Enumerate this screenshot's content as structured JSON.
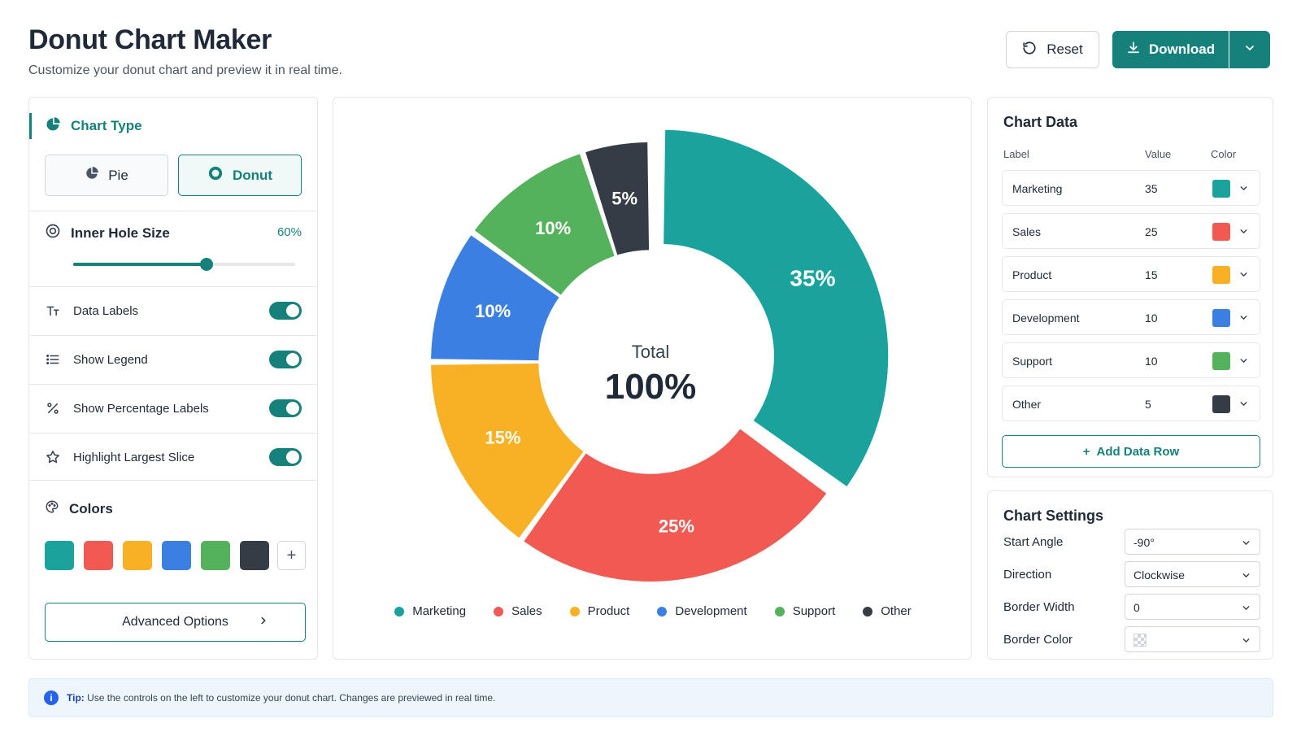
{
  "header": {
    "title": "Donut Chart Maker",
    "subtitle": "Customize your donut chart and preview it in real time.",
    "reset_label": "Reset",
    "download_label": "Download"
  },
  "left": {
    "chart_type_heading": "Chart Type",
    "type_pie": "Pie",
    "type_donut": "Donut",
    "hole_label": "Inner Hole Size",
    "hole_value": "60%",
    "hole_fraction": 0.6,
    "toggles": [
      {
        "label": "Data Labels",
        "icon": "text-size-icon",
        "on": true
      },
      {
        "label": "Show Legend",
        "icon": "list-icon",
        "on": true
      },
      {
        "label": "Show Percentage Labels",
        "icon": "percent-icon",
        "on": true
      },
      {
        "label": "Highlight Largest Slice",
        "icon": "star-icon",
        "on": true
      }
    ],
    "colors_heading": "Colors",
    "swatches": [
      "#1aa39d",
      "#f05a52",
      "#f8b125",
      "#3b7fe3",
      "#55b25c",
      "#363c45"
    ],
    "advanced_label": "Advanced Options"
  },
  "chart_data": {
    "type": "pie",
    "donut": true,
    "center_label": "Total",
    "center_value": "100%",
    "labels": [
      "Marketing",
      "Sales",
      "Product",
      "Development",
      "Support",
      "Other"
    ],
    "values": [
      35,
      25,
      15,
      10,
      10,
      5
    ],
    "data_labels": [
      "35%",
      "25%",
      "15%",
      "10%",
      "10%",
      "5%"
    ],
    "colors": [
      "#1aa39d",
      "#f05a52",
      "#f8b125",
      "#3b7fe3",
      "#55b25c",
      "#363c45"
    ],
    "start_angle": -90,
    "direction": "clockwise",
    "highlighted": "Marketing",
    "legend": "bottom"
  },
  "data_panel": {
    "title": "Chart Data",
    "col_label": "Label",
    "col_value": "Value",
    "col_color": "Color",
    "rows": [
      {
        "label": "Marketing",
        "value": "35",
        "color": "#1aa39d"
      },
      {
        "label": "Sales",
        "value": "25",
        "color": "#f05a52"
      },
      {
        "label": "Product",
        "value": "15",
        "color": "#f8b125"
      },
      {
        "label": "Development",
        "value": "10",
        "color": "#3b7fe3"
      },
      {
        "label": "Support",
        "value": "10",
        "color": "#55b25c"
      },
      {
        "label": "Other",
        "value": "5",
        "color": "#363c45"
      }
    ],
    "add_row_label": "Add Data Row"
  },
  "settings": {
    "title": "Chart Settings",
    "items": [
      {
        "label": "Start Angle",
        "value": "-90°"
      },
      {
        "label": "Direction",
        "value": "Clockwise"
      },
      {
        "label": "Border Width",
        "value": "0"
      },
      {
        "label": "Border Color",
        "value": ""
      }
    ]
  },
  "tip": {
    "prefix": "Tip:",
    "text": "Use the controls on the left to customize your donut chart. Changes are previewed in real time."
  },
  "theme": {
    "accent": "#16807b"
  }
}
